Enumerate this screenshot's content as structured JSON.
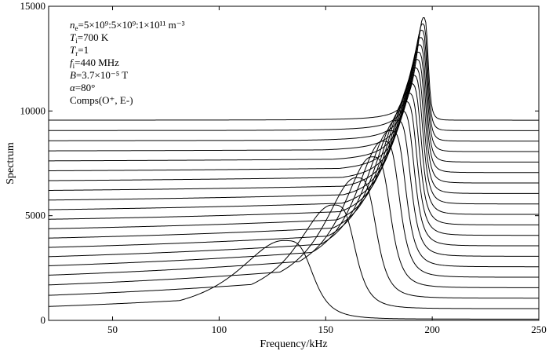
{
  "chart_data": {
    "type": "line",
    "xlabel": "Frequency/kHz",
    "ylabel": "Spectrum",
    "xlim": [
      20,
      250
    ],
    "ylim": [
      0,
      15000
    ],
    "xticks": [
      50,
      100,
      150,
      200,
      250
    ],
    "yticks": [
      0,
      5000,
      10000,
      15000
    ],
    "xtick_labels": [
      "50",
      "100",
      "150",
      "200",
      "250"
    ],
    "ytick_labels": [
      "0",
      "5000",
      "10000",
      "15000"
    ],
    "grid": false,
    "line_color": "#000000",
    "annotation_lines": [
      {
        "main": "n",
        "sub": "e",
        "rest": "=5×10⁹:5×10⁹:1×10¹¹ m⁻³"
      },
      {
        "main": "T",
        "sub": "i",
        "rest": "=700 K"
      },
      {
        "main": "T",
        "sub": "r",
        "rest": "=1"
      },
      {
        "main": "f",
        "sub": "i",
        "rest": "=440 MHz"
      },
      {
        "main": "B",
        "sub": "",
        "rest": "=3.7×10⁻⁵ T"
      },
      {
        "main": "α",
        "sub": "",
        "rest": "=80°"
      },
      {
        "main": "",
        "sub": "",
        "rest": "Comps(O⁺, E-)"
      }
    ],
    "series": [
      {
        "offset": 0,
        "peak_x": 130,
        "peak_y": 3750,
        "end_y": 20
      },
      {
        "offset": 500,
        "peak_x": 153,
        "peak_y": 5450,
        "end_y": 520
      },
      {
        "offset": 1000,
        "peak_x": 164,
        "peak_y": 6750,
        "end_y": 1020
      },
      {
        "offset": 1500,
        "peak_x": 171.5,
        "peak_y": 7750,
        "end_y": 1520
      },
      {
        "offset": 2000,
        "peak_x": 176.5,
        "peak_y": 8500,
        "end_y": 2020
      },
      {
        "offset": 2500,
        "peak_x": 180,
        "peak_y": 9000,
        "end_y": 2520
      },
      {
        "offset": 3000,
        "peak_x": 182.8,
        "peak_y": 9500,
        "end_y": 3020
      },
      {
        "offset": 3500,
        "peak_x": 185,
        "peak_y": 9950,
        "end_y": 3520
      },
      {
        "offset": 4000,
        "peak_x": 186.8,
        "peak_y": 10400,
        "end_y": 4020
      },
      {
        "offset": 4500,
        "peak_x": 188.3,
        "peak_y": 10800,
        "end_y": 4520
      },
      {
        "offset": 5000,
        "peak_x": 189.6,
        "peak_y": 11250,
        "end_y": 5020
      },
      {
        "offset": 5500,
        "peak_x": 190.7,
        "peak_y": 11650,
        "end_y": 5520
      },
      {
        "offset": 6000,
        "peak_x": 191.6,
        "peak_y": 12000,
        "end_y": 6020
      },
      {
        "offset": 6500,
        "peak_x": 192.4,
        "peak_y": 12400,
        "end_y": 6520
      },
      {
        "offset": 7000,
        "peak_x": 193.1,
        "peak_y": 12750,
        "end_y": 7020
      },
      {
        "offset": 7500,
        "peak_x": 193.7,
        "peak_y": 13100,
        "end_y": 7520
      },
      {
        "offset": 8000,
        "peak_x": 194.3,
        "peak_y": 13450,
        "end_y": 8020
      },
      {
        "offset": 8500,
        "peak_x": 194.8,
        "peak_y": 13800,
        "end_y": 8520
      },
      {
        "offset": 9000,
        "peak_x": 195.3,
        "peak_y": 14100,
        "end_y": 9020
      },
      {
        "offset": 9500,
        "peak_x": 195.8,
        "peak_y": 14400,
        "end_y": 9520
      }
    ]
  }
}
